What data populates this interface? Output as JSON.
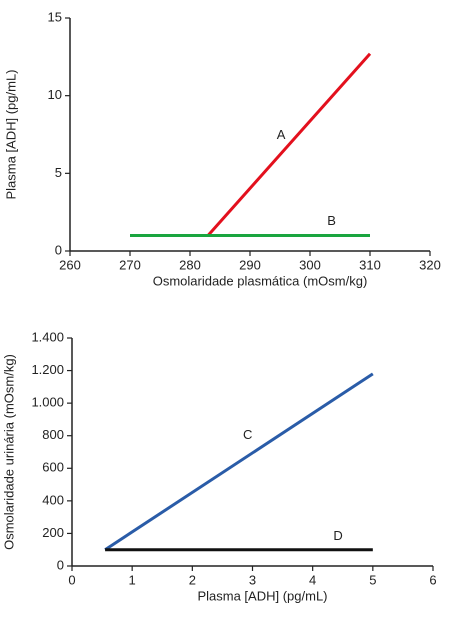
{
  "chart_data": [
    {
      "type": "line",
      "xlabel": "Osmolaridade plasmática (mOsm/kg)",
      "ylabel": "Plasma [ADH] (pg/mL)",
      "xlim": [
        260,
        320
      ],
      "xticks": [
        260,
        270,
        280,
        290,
        300,
        310,
        320
      ],
      "ylim": [
        0,
        15
      ],
      "yticks": [
        0,
        5,
        10,
        15
      ],
      "series": [
        {
          "name": "A",
          "color": "#e3101d",
          "x": [
            283,
            310
          ],
          "values": [
            1,
            12.7
          ]
        },
        {
          "name": "B",
          "color": "#1aa53f",
          "x": [
            270,
            310
          ],
          "values": [
            1,
            1
          ]
        }
      ]
    },
    {
      "type": "line",
      "xlabel": "Plasma [ADH] (pg/mL)",
      "ylabel": "Osmolaridade urinária (mOsm/kg)",
      "xlim": [
        0,
        6
      ],
      "xticks": [
        0,
        1,
        2,
        3,
        4,
        5,
        6
      ],
      "ylim": [
        0,
        1400
      ],
      "yticks": [
        0,
        200,
        400,
        600,
        800,
        {
          "value": 1000,
          "label": "1.000"
        },
        {
          "value": 1200,
          "label": "1.200"
        },
        {
          "value": 1400,
          "label": "1.400"
        }
      ],
      "series": [
        {
          "name": "C",
          "color": "#2a5ca8",
          "x": [
            0.55,
            5
          ],
          "values": [
            100,
            1180
          ]
        },
        {
          "name": "D",
          "color": "#111111",
          "x": [
            0.55,
            5
          ],
          "values": [
            100,
            100
          ]
        }
      ]
    }
  ]
}
